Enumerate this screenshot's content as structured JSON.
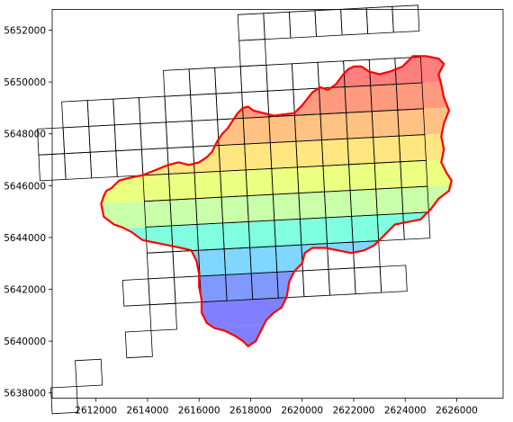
{
  "chart_data": {
    "type": "map",
    "title": "",
    "xlabel": "",
    "ylabel": "",
    "xlim": [
      2610300,
      2627800
    ],
    "ylim": [
      5637800,
      5652800
    ],
    "x_ticks": [
      2612000,
      2614000,
      2616000,
      2618000,
      2620000,
      2622000,
      2624000,
      2626000
    ],
    "y_ticks": [
      5638000,
      5640000,
      5642000,
      5644000,
      5646000,
      5648000,
      5650000,
      5652000
    ],
    "grid": false,
    "fill_colormap": "rainbow (north = red, south = blue)",
    "boundary_color": "#ff0000",
    "grid_line_color": "#000000",
    "band_colors": [
      "#8080ff",
      "#7f99ff",
      "#7fd6ff",
      "#7fffdf",
      "#c8ffa8",
      "#ebff80",
      "#ffe680",
      "#ffc282",
      "#ff9a7f",
      "#ff7f7f",
      "#c8686f"
    ],
    "boundary": [
      [
        2612400,
        5645800
      ],
      [
        2612600,
        5645900
      ],
      [
        2612900,
        5646200
      ],
      [
        2613300,
        5646300
      ],
      [
        2613800,
        5646400
      ],
      [
        2614300,
        5646600
      ],
      [
        2614800,
        5646800
      ],
      [
        2615200,
        5646900
      ],
      [
        2615600,
        5646800
      ],
      [
        2616000,
        5646900
      ],
      [
        2616300,
        5647100
      ],
      [
        2616500,
        5647300
      ],
      [
        2616700,
        5647700
      ],
      [
        2616900,
        5648000
      ],
      [
        2617100,
        5648200
      ],
      [
        2617300,
        5648500
      ],
      [
        2617500,
        5648800
      ],
      [
        2617700,
        5649000
      ],
      [
        2617900,
        5649050
      ],
      [
        2618100,
        5648900
      ],
      [
        2618500,
        5648800
      ],
      [
        2618900,
        5648700
      ],
      [
        2619300,
        5648750
      ],
      [
        2619700,
        5648800
      ],
      [
        2620000,
        5649100
      ],
      [
        2620400,
        5649600
      ],
      [
        2620700,
        5649800
      ],
      [
        2621000,
        5649700
      ],
      [
        2621300,
        5649900
      ],
      [
        2621600,
        5650300
      ],
      [
        2621800,
        5650500
      ],
      [
        2622000,
        5650600
      ],
      [
        2622300,
        5650600
      ],
      [
        2622600,
        5650400
      ],
      [
        2623000,
        5650300
      ],
      [
        2623400,
        5650400
      ],
      [
        2623900,
        5650600
      ],
      [
        2624300,
        5651000
      ],
      [
        2624800,
        5651000
      ],
      [
        2625300,
        5650900
      ],
      [
        2625500,
        5650700
      ],
      [
        2625300,
        5650300
      ],
      [
        2625400,
        5649900
      ],
      [
        2625500,
        5649400
      ],
      [
        2625700,
        5648900
      ],
      [
        2625500,
        5648400
      ],
      [
        2625400,
        5647900
      ],
      [
        2625500,
        5647400
      ],
      [
        2625400,
        5646900
      ],
      [
        2625600,
        5646500
      ],
      [
        2625800,
        5646200
      ],
      [
        2625700,
        5645800
      ],
      [
        2625300,
        5645500
      ],
      [
        2625000,
        5645100
      ],
      [
        2624600,
        5644700
      ],
      [
        2624100,
        5644600
      ],
      [
        2623600,
        5644500
      ],
      [
        2623200,
        5644100
      ],
      [
        2622800,
        5643700
      ],
      [
        2622400,
        5643500
      ],
      [
        2621900,
        5643400
      ],
      [
        2621400,
        5643500
      ],
      [
        2620900,
        5643600
      ],
      [
        2620400,
        5643600
      ],
      [
        2620100,
        5643400
      ],
      [
        2620000,
        5643000
      ],
      [
        2619700,
        5642700
      ],
      [
        2619500,
        5642300
      ],
      [
        2619400,
        5641700
      ],
      [
        2619200,
        5641300
      ],
      [
        2618900,
        5641100
      ],
      [
        2618600,
        5640800
      ],
      [
        2618400,
        5640400
      ],
      [
        2618200,
        5640000
      ],
      [
        2617900,
        5639800
      ],
      [
        2617700,
        5640000
      ],
      [
        2617400,
        5640200
      ],
      [
        2617000,
        5640400
      ],
      [
        2616600,
        5640500
      ],
      [
        2616300,
        5640700
      ],
      [
        2616100,
        5641100
      ],
      [
        2616100,
        5641600
      ],
      [
        2616000,
        5642100
      ],
      [
        2616000,
        5642600
      ],
      [
        2615900,
        5643100
      ],
      [
        2615700,
        5643500
      ],
      [
        2615300,
        5643600
      ],
      [
        2614800,
        5643700
      ],
      [
        2614300,
        5643800
      ],
      [
        2613800,
        5643900
      ],
      [
        2613400,
        5644200
      ],
      [
        2613000,
        5644400
      ],
      [
        2612700,
        5644500
      ],
      [
        2612300,
        5644800
      ],
      [
        2612200,
        5645300
      ],
      [
        2612300,
        5645600
      ],
      [
        2612400,
        5645800
      ]
    ]
  }
}
